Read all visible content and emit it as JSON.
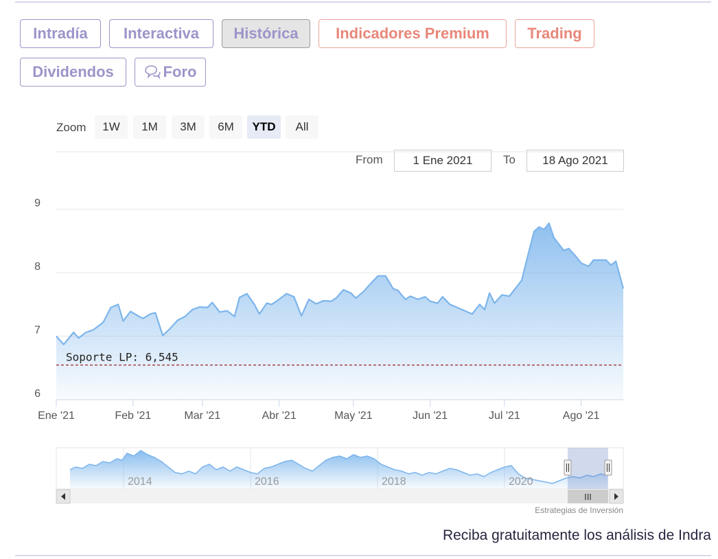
{
  "tabs": [
    {
      "label": "Intradía",
      "state": "normal"
    },
    {
      "label": "Interactiva",
      "state": "normal"
    },
    {
      "label": "Histórica",
      "state": "active"
    },
    {
      "label": "Indicadores Premium",
      "state": "premium"
    },
    {
      "label": "Trading",
      "state": "premium"
    },
    {
      "label": "Dividendos",
      "state": "normal"
    },
    {
      "label": "Foro",
      "state": "normal",
      "icon": "chat-bubbles-icon"
    }
  ],
  "zoom": {
    "label": "Zoom",
    "buttons": [
      "1W",
      "1M",
      "3M",
      "6M",
      "YTD",
      "All"
    ],
    "selected": "YTD"
  },
  "range": {
    "from_label": "From",
    "from_value": "1 Ene 2021",
    "to_label": "To",
    "to_value": "18 Ago 2021"
  },
  "chart_data": {
    "type": "area",
    "x_ticks": [
      "Ene '21",
      "Feb '21",
      "Mar '21",
      "Abr '21",
      "May '21",
      "Jun '21",
      "Jul '21",
      "Ago '21"
    ],
    "y_ticks": [
      6,
      7,
      8,
      9
    ],
    "ylim": [
      6,
      9.05
    ],
    "xlim": [
      "2021-01-01",
      "2021-08-18"
    ],
    "grid": true,
    "series": [
      {
        "color": "#7cb5ec",
        "points": [
          [
            "2021-01-01",
            7.0
          ],
          [
            "2021-01-04",
            6.87
          ],
          [
            "2021-01-08",
            7.06
          ],
          [
            "2021-01-10",
            6.97
          ],
          [
            "2021-01-13",
            7.06
          ],
          [
            "2021-01-16",
            7.1
          ],
          [
            "2021-01-20",
            7.22
          ],
          [
            "2021-01-23",
            7.45
          ],
          [
            "2021-01-26",
            7.5
          ],
          [
            "2021-01-28",
            7.24
          ],
          [
            "2021-01-31",
            7.39
          ],
          [
            "2021-02-03",
            7.32
          ],
          [
            "2021-02-05",
            7.28
          ],
          [
            "2021-02-08",
            7.35
          ],
          [
            "2021-02-10",
            7.37
          ],
          [
            "2021-02-13",
            7.01
          ],
          [
            "2021-02-16",
            7.12
          ],
          [
            "2021-02-19",
            7.25
          ],
          [
            "2021-02-22",
            7.31
          ],
          [
            "2021-02-25",
            7.42
          ],
          [
            "2021-02-28",
            7.46
          ],
          [
            "2021-03-03",
            7.45
          ],
          [
            "2021-03-05",
            7.53
          ],
          [
            "2021-03-08",
            7.38
          ],
          [
            "2021-03-11",
            7.4
          ],
          [
            "2021-03-14",
            7.31
          ],
          [
            "2021-03-16",
            7.61
          ],
          [
            "2021-03-19",
            7.67
          ],
          [
            "2021-03-22",
            7.5
          ],
          [
            "2021-03-24",
            7.35
          ],
          [
            "2021-03-27",
            7.52
          ],
          [
            "2021-03-29",
            7.5
          ],
          [
            "2021-04-01",
            7.58
          ],
          [
            "2021-04-04",
            7.67
          ],
          [
            "2021-04-07",
            7.62
          ],
          [
            "2021-04-10",
            7.32
          ],
          [
            "2021-04-13",
            7.58
          ],
          [
            "2021-04-16",
            7.51
          ],
          [
            "2021-04-19",
            7.56
          ],
          [
            "2021-04-22",
            7.55
          ],
          [
            "2021-04-24",
            7.6
          ],
          [
            "2021-04-27",
            7.73
          ],
          [
            "2021-04-30",
            7.68
          ],
          [
            "2021-05-02",
            7.6
          ],
          [
            "2021-05-05",
            7.7
          ],
          [
            "2021-05-08",
            7.83
          ],
          [
            "2021-05-11",
            7.95
          ],
          [
            "2021-05-14",
            7.95
          ],
          [
            "2021-05-17",
            7.75
          ],
          [
            "2021-05-19",
            7.72
          ],
          [
            "2021-05-22",
            7.58
          ],
          [
            "2021-05-24",
            7.63
          ],
          [
            "2021-05-27",
            7.58
          ],
          [
            "2021-05-30",
            7.62
          ],
          [
            "2021-06-01",
            7.55
          ],
          [
            "2021-06-04",
            7.52
          ],
          [
            "2021-06-06",
            7.62
          ],
          [
            "2021-06-09",
            7.5
          ],
          [
            "2021-06-12",
            7.45
          ],
          [
            "2021-06-15",
            7.4
          ],
          [
            "2021-06-18",
            7.35
          ],
          [
            "2021-06-21",
            7.5
          ],
          [
            "2021-06-23",
            7.42
          ],
          [
            "2021-06-25",
            7.68
          ],
          [
            "2021-06-27",
            7.52
          ],
          [
            "2021-06-30",
            7.65
          ],
          [
            "2021-07-03",
            7.63
          ],
          [
            "2021-07-06",
            7.78
          ],
          [
            "2021-07-08",
            7.88
          ],
          [
            "2021-07-10",
            8.2
          ],
          [
            "2021-07-13",
            8.65
          ],
          [
            "2021-07-15",
            8.72
          ],
          [
            "2021-07-17",
            8.68
          ],
          [
            "2021-07-19",
            8.78
          ],
          [
            "2021-07-21",
            8.55
          ],
          [
            "2021-07-23",
            8.45
          ],
          [
            "2021-07-25",
            8.35
          ],
          [
            "2021-07-27",
            8.38
          ],
          [
            "2021-07-30",
            8.25
          ],
          [
            "2021-08-01",
            8.15
          ],
          [
            "2021-08-04",
            8.1
          ],
          [
            "2021-08-06",
            8.2
          ],
          [
            "2021-08-09",
            8.2
          ],
          [
            "2021-08-11",
            8.2
          ],
          [
            "2021-08-13",
            8.12
          ],
          [
            "2021-08-15",
            8.18
          ],
          [
            "2021-08-18",
            7.75
          ]
        ]
      }
    ],
    "annotation": {
      "label": "Soporte LP: 6,545",
      "value": 6.545,
      "color": "#a0303a"
    }
  },
  "navigator": {
    "labels": [
      "2014",
      "2016",
      "2018",
      "2020"
    ],
    "scroll_handle": "III"
  },
  "credit": "Estrategias de Inversión",
  "promo_text": "Reciba gratuitamente los análisis de Indra"
}
